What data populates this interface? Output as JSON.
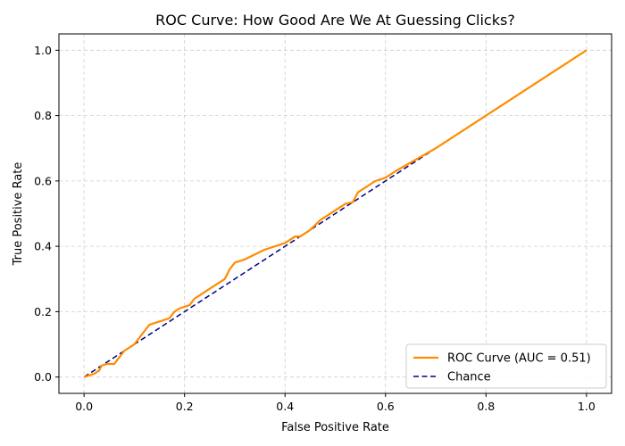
{
  "chart_data": {
    "type": "line",
    "title": "ROC Curve: How Good Are We At Guessing Clicks?",
    "xlabel": "False Positive Rate",
    "ylabel": "True Positive Rate",
    "xlim": [
      -0.05,
      1.05
    ],
    "ylim": [
      -0.05,
      1.05
    ],
    "xticks": [
      0.0,
      0.2,
      0.4,
      0.6,
      0.8,
      1.0
    ],
    "yticks": [
      0.0,
      0.2,
      0.4,
      0.6,
      0.8,
      1.0
    ],
    "xtick_labels": [
      "0.0",
      "0.2",
      "0.4",
      "0.6",
      "0.8",
      "1.0"
    ],
    "ytick_labels": [
      "0.0",
      "0.2",
      "0.4",
      "0.6",
      "0.8",
      "1.0"
    ],
    "grid": true,
    "legend_position": "bottom-right",
    "series": [
      {
        "name": "ROC Curve (AUC = 0.51)",
        "color": "#ff8c00",
        "style": "solid",
        "points": [
          [
            0.0,
            0.0
          ],
          [
            0.02,
            0.01
          ],
          [
            0.03,
            0.02
          ],
          [
            0.035,
            0.035
          ],
          [
            0.045,
            0.04
          ],
          [
            0.06,
            0.04
          ],
          [
            0.07,
            0.06
          ],
          [
            0.08,
            0.08
          ],
          [
            0.09,
            0.09
          ],
          [
            0.1,
            0.1
          ],
          [
            0.11,
            0.12
          ],
          [
            0.12,
            0.14
          ],
          [
            0.13,
            0.16
          ],
          [
            0.15,
            0.17
          ],
          [
            0.17,
            0.18
          ],
          [
            0.18,
            0.2
          ],
          [
            0.19,
            0.21
          ],
          [
            0.21,
            0.22
          ],
          [
            0.22,
            0.24
          ],
          [
            0.24,
            0.26
          ],
          [
            0.26,
            0.28
          ],
          [
            0.28,
            0.3
          ],
          [
            0.29,
            0.33
          ],
          [
            0.3,
            0.35
          ],
          [
            0.32,
            0.36
          ],
          [
            0.34,
            0.375
          ],
          [
            0.36,
            0.39
          ],
          [
            0.38,
            0.4
          ],
          [
            0.4,
            0.41
          ],
          [
            0.42,
            0.43
          ],
          [
            0.43,
            0.43
          ],
          [
            0.45,
            0.45
          ],
          [
            0.47,
            0.48
          ],
          [
            0.5,
            0.51
          ],
          [
            0.52,
            0.53
          ],
          [
            0.535,
            0.535
          ],
          [
            0.545,
            0.565
          ],
          [
            0.56,
            0.58
          ],
          [
            0.58,
            0.6
          ],
          [
            0.6,
            0.61
          ],
          [
            0.62,
            0.63
          ],
          [
            0.7,
            0.7
          ],
          [
            0.8,
            0.8
          ],
          [
            0.9,
            0.9
          ],
          [
            1.0,
            1.0
          ]
        ]
      },
      {
        "name": "Chance",
        "color": "#000080",
        "style": "dashed",
        "points": [
          [
            0.0,
            0.0
          ],
          [
            1.0,
            1.0
          ]
        ]
      }
    ]
  }
}
